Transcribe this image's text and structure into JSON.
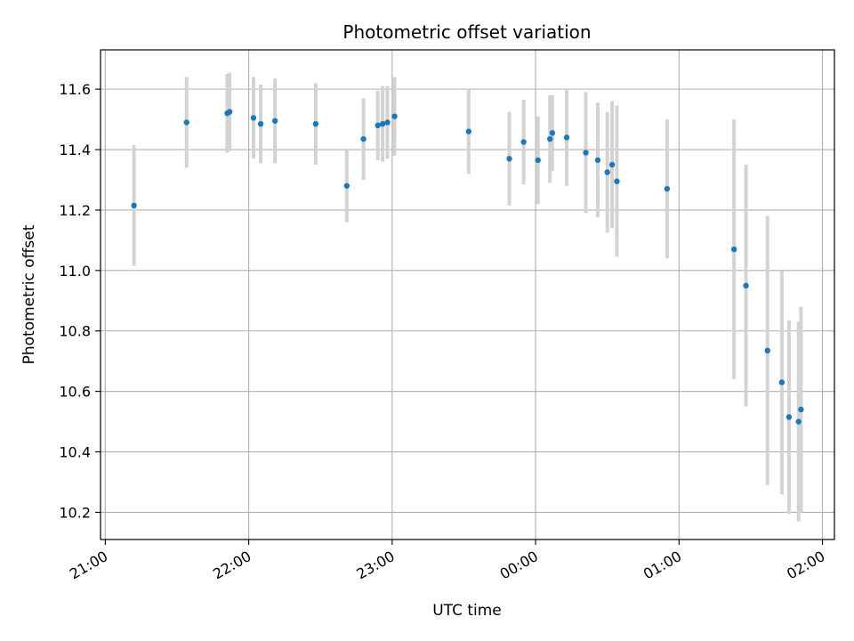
{
  "chart_data": {
    "type": "scatter",
    "title": "Photometric offset variation",
    "xlabel": "UTC time",
    "ylabel": "Photometric offset",
    "x_unit": "UTC clock time (HH:MM)",
    "xlim": [
      "20:58",
      "02:05"
    ],
    "ylim": [
      10.11,
      11.73
    ],
    "xticks": [
      "21:00",
      "22:00",
      "23:00",
      "00:00",
      "01:00",
      "02:00"
    ],
    "yticks": [
      "10.2",
      "10.4",
      "10.6",
      "10.8",
      "11.0",
      "11.2",
      "11.4",
      "11.6"
    ],
    "grid": true,
    "legend": "none",
    "point_color": "#1f77b4",
    "errorbar_color": "#d3d3d3",
    "points": [
      {
        "x": "21:12",
        "y": 11.215,
        "yerr": 0.2
      },
      {
        "x": "21:34",
        "y": 11.49,
        "yerr": 0.15
      },
      {
        "x": "21:51",
        "y": 11.52,
        "yerr": 0.13
      },
      {
        "x": "21:52",
        "y": 11.525,
        "yerr": 0.13
      },
      {
        "x": "22:02",
        "y": 11.505,
        "yerr": 0.135
      },
      {
        "x": "22:05",
        "y": 11.485,
        "yerr": 0.13
      },
      {
        "x": "22:11",
        "y": 11.495,
        "yerr": 0.14
      },
      {
        "x": "22:28",
        "y": 11.485,
        "yerr": 0.135
      },
      {
        "x": "22:41",
        "y": 11.28,
        "yerr": 0.12
      },
      {
        "x": "22:48",
        "y": 11.435,
        "yerr": 0.135
      },
      {
        "x": "22:54",
        "y": 11.48,
        "yerr": 0.115
      },
      {
        "x": "22:56",
        "y": 11.485,
        "yerr": 0.125
      },
      {
        "x": "22:58",
        "y": 11.49,
        "yerr": 0.12
      },
      {
        "x": "23:01",
        "y": 11.51,
        "yerr": 0.13
      },
      {
        "x": "23:32",
        "y": 11.46,
        "yerr": 0.14
      },
      {
        "x": "23:49",
        "y": 11.37,
        "yerr": 0.155
      },
      {
        "x": "23:55",
        "y": 11.425,
        "yerr": 0.14
      },
      {
        "x": "00:01",
        "y": 11.365,
        "yerr": 0.145
      },
      {
        "x": "00:06",
        "y": 11.435,
        "yerr": 0.145
      },
      {
        "x": "00:07",
        "y": 11.455,
        "yerr": 0.125
      },
      {
        "x": "00:13",
        "y": 11.44,
        "yerr": 0.16
      },
      {
        "x": "00:21",
        "y": 11.39,
        "yerr": 0.2
      },
      {
        "x": "00:26",
        "y": 11.365,
        "yerr": 0.19
      },
      {
        "x": "00:30",
        "y": 11.325,
        "yerr": 0.2
      },
      {
        "x": "00:32",
        "y": 11.35,
        "yerr": 0.21
      },
      {
        "x": "00:34",
        "y": 11.295,
        "yerr": 0.25
      },
      {
        "x": "00:55",
        "y": 11.27,
        "yerr": 0.23
      },
      {
        "x": "01:23",
        "y": 11.07,
        "yerr": 0.43
      },
      {
        "x": "01:28",
        "y": 10.95,
        "yerr": 0.4
      },
      {
        "x": "01:37",
        "y": 10.735,
        "yerr": 0.445
      },
      {
        "x": "01:43",
        "y": 10.63,
        "yerr": 0.37
      },
      {
        "x": "01:46",
        "y": 10.515,
        "yerr": 0.32
      },
      {
        "x": "01:50",
        "y": 10.5,
        "yerr": 0.33
      },
      {
        "x": "01:51",
        "y": 10.54,
        "yerr": 0.34
      }
    ]
  }
}
